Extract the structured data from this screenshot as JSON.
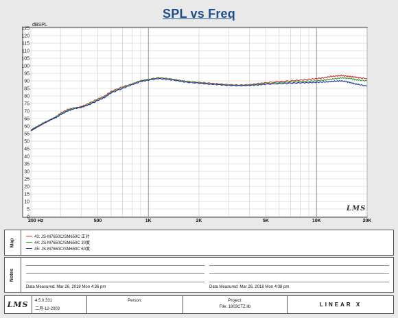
{
  "chart_data": {
    "type": "line",
    "title": "SPL vs Freq",
    "ylabel": "dBSPL",
    "xscale": "log",
    "xlim": [
      200,
      20000
    ],
    "ylim": [
      0,
      125
    ],
    "y_ticks": [
      0,
      5,
      10,
      15,
      20,
      25,
      30,
      35,
      40,
      45,
      50,
      55,
      60,
      65,
      70,
      75,
      80,
      85,
      90,
      95,
      100,
      105,
      110,
      115,
      120,
      125
    ],
    "x_tick_labels": [
      {
        "value": 200,
        "label": "200  Hz"
      },
      {
        "value": 500,
        "label": "500"
      },
      {
        "value": 1000,
        "label": "1K"
      },
      {
        "value": 2000,
        "label": "2K"
      },
      {
        "value": 5000,
        "label": "5K"
      },
      {
        "value": 10000,
        "label": "10K"
      },
      {
        "value": 20000,
        "label": "20K"
      }
    ],
    "grid": true,
    "series": [
      {
        "name": "43: JS-M7650C/SM650C 正对",
        "color": "#d42a2a",
        "points": [
          [
            200,
            57
          ],
          [
            215,
            59
          ],
          [
            240,
            62
          ],
          [
            260,
            64
          ],
          [
            280,
            66
          ],
          [
            300,
            68.5
          ],
          [
            330,
            71
          ],
          [
            360,
            72
          ],
          [
            400,
            73
          ],
          [
            440,
            75
          ],
          [
            500,
            78
          ],
          [
            550,
            80
          ],
          [
            600,
            83
          ],
          [
            700,
            86
          ],
          [
            800,
            88
          ],
          [
            900,
            90
          ],
          [
            1000,
            91
          ],
          [
            1150,
            92
          ],
          [
            1300,
            91.5
          ],
          [
            1500,
            90.5
          ],
          [
            1700,
            89.5
          ],
          [
            2000,
            89
          ],
          [
            2300,
            88.5
          ],
          [
            2600,
            88
          ],
          [
            3000,
            87.5
          ],
          [
            3500,
            87.2
          ],
          [
            4000,
            87.5
          ],
          [
            4500,
            88.2
          ],
          [
            5000,
            88.8
          ],
          [
            6000,
            89.5
          ],
          [
            7000,
            90
          ],
          [
            8000,
            90.5
          ],
          [
            9000,
            91
          ],
          [
            10000,
            91.5
          ],
          [
            11000,
            92
          ],
          [
            12000,
            92.8
          ],
          [
            13000,
            93.2
          ],
          [
            14000,
            93.5
          ],
          [
            15000,
            93.2
          ],
          [
            16000,
            92.8
          ],
          [
            17000,
            92.5
          ],
          [
            18000,
            92
          ],
          [
            20000,
            91.5
          ]
        ]
      },
      {
        "name": "44: JS-M7650C/SM650C 30度",
        "color": "#2e9a2e",
        "points": [
          [
            200,
            57.5
          ],
          [
            215,
            59.5
          ],
          [
            240,
            62.5
          ],
          [
            260,
            64
          ],
          [
            280,
            66
          ],
          [
            300,
            68
          ],
          [
            330,
            70.5
          ],
          [
            360,
            72
          ],
          [
            400,
            72.5
          ],
          [
            440,
            74.5
          ],
          [
            500,
            77.5
          ],
          [
            550,
            79.5
          ],
          [
            600,
            82.5
          ],
          [
            700,
            85.5
          ],
          [
            800,
            88
          ],
          [
            900,
            90
          ],
          [
            1000,
            91
          ],
          [
            1150,
            92
          ],
          [
            1300,
            91.5
          ],
          [
            1500,
            90.5
          ],
          [
            1700,
            89.5
          ],
          [
            2000,
            88.8
          ],
          [
            2300,
            88
          ],
          [
            2600,
            87.8
          ],
          [
            3000,
            87.2
          ],
          [
            3500,
            87
          ],
          [
            4000,
            87.2
          ],
          [
            4500,
            87.8
          ],
          [
            5000,
            88.2
          ],
          [
            6000,
            88.8
          ],
          [
            7000,
            89.2
          ],
          [
            8000,
            89.5
          ],
          [
            9000,
            89.8
          ],
          [
            10000,
            90
          ],
          [
            11000,
            90.5
          ],
          [
            12000,
            91
          ],
          [
            13000,
            91.5
          ],
          [
            14000,
            92
          ],
          [
            15000,
            91.8
          ],
          [
            16000,
            91.5
          ],
          [
            17000,
            91
          ],
          [
            18000,
            90.5
          ],
          [
            20000,
            90
          ]
        ]
      },
      {
        "name": "45: JS-M7650C/SM650C 60度",
        "color": "#1f2fa8",
        "points": [
          [
            200,
            57
          ],
          [
            215,
            59
          ],
          [
            240,
            62
          ],
          [
            260,
            64
          ],
          [
            280,
            65.5
          ],
          [
            300,
            67.5
          ],
          [
            330,
            70
          ],
          [
            360,
            71.5
          ],
          [
            400,
            72.5
          ],
          [
            440,
            74
          ],
          [
            500,
            77
          ],
          [
            550,
            79
          ],
          [
            600,
            82
          ],
          [
            700,
            85
          ],
          [
            800,
            87.5
          ],
          [
            900,
            89.5
          ],
          [
            1000,
            90.5
          ],
          [
            1150,
            91.5
          ],
          [
            1300,
            91
          ],
          [
            1500,
            90
          ],
          [
            1700,
            89
          ],
          [
            2000,
            88.5
          ],
          [
            2300,
            87.8
          ],
          [
            2600,
            87.5
          ],
          [
            3000,
            87
          ],
          [
            3500,
            86.8
          ],
          [
            4000,
            87
          ],
          [
            4500,
            87.3
          ],
          [
            5000,
            87.8
          ],
          [
            6000,
            88.2
          ],
          [
            7000,
            88.5
          ],
          [
            8000,
            88.7
          ],
          [
            9000,
            88.8
          ],
          [
            10000,
            89
          ],
          [
            11000,
            89.2
          ],
          [
            12000,
            89.5
          ],
          [
            13000,
            89.8
          ],
          [
            14000,
            90
          ],
          [
            15000,
            89.5
          ],
          [
            16000,
            88.8
          ],
          [
            17000,
            88
          ],
          [
            18000,
            87.5
          ],
          [
            20000,
            86.5
          ]
        ]
      }
    ]
  },
  "panels": {
    "map_label": "Map",
    "notes_label": "Notes"
  },
  "measured": {
    "left": "Data Measured:  Mar 26, 2018   Mon   4:36 pm",
    "right": "Data Measured:  Mar 26, 2018   Mon   4:38 pm"
  },
  "footer": {
    "logo": "LMS",
    "version_line1": "4.5.0.331",
    "version_line2": "二月-12-2003",
    "person_label": "Person:",
    "person_value": "",
    "project_label": "Project:",
    "project_value": "File: 1803CTZ.lib",
    "brand": "LINEAR X"
  },
  "plot_logo": "LMS"
}
